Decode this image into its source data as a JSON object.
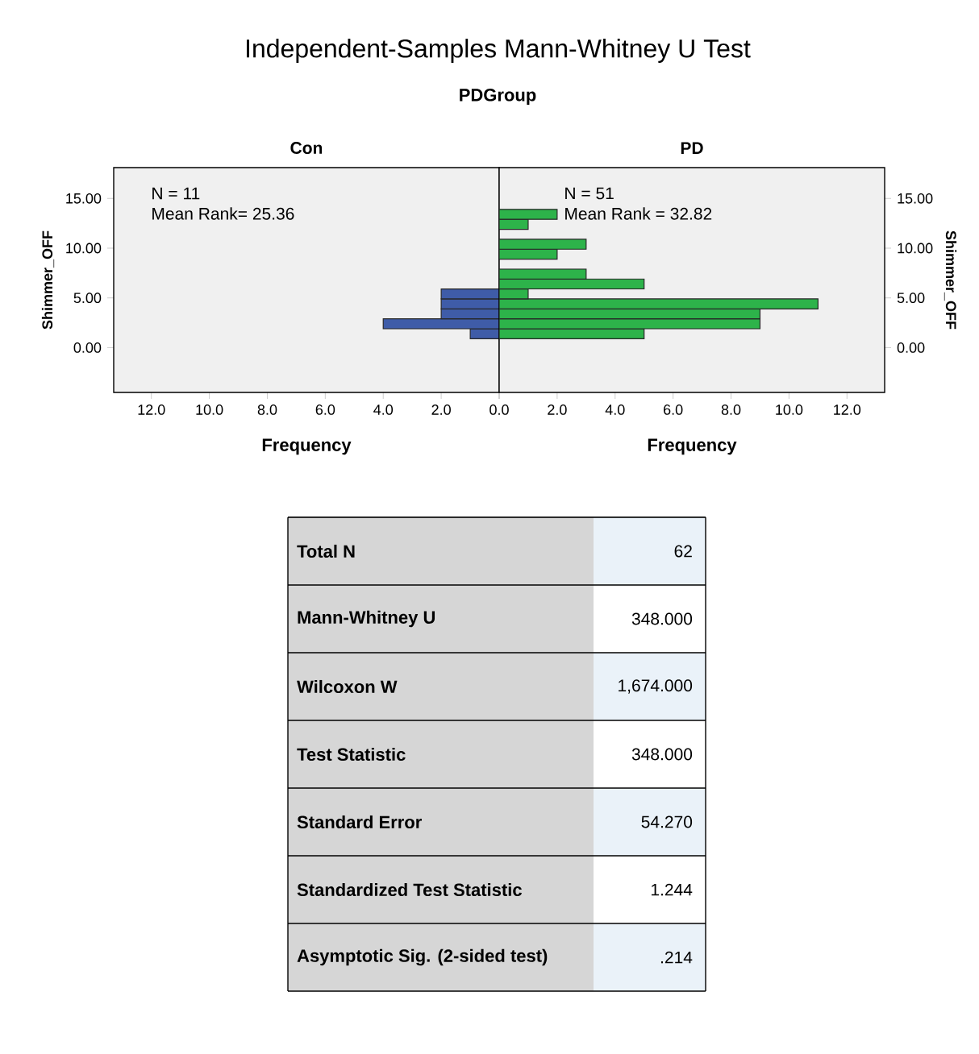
{
  "chart_data": [
    {
      "type": "other",
      "title": "Independent-Samples Mann-Whitney U Test",
      "subtitle": "PDGroup"
    },
    {
      "type": "histogram",
      "orientation": "horizontal",
      "title": "Con",
      "xlabel": "Frequency",
      "ylabel": "Shimmer_OFF",
      "color": "#3f5ca8",
      "bins": [
        0.9,
        1.9,
        2.9,
        3.9,
        4.9,
        5.9
      ],
      "values": [
        1,
        4,
        2,
        2,
        2
      ],
      "xlim": [
        13.3,
        0
      ],
      "ylim": [
        -4.5,
        18.1
      ],
      "xticks": [
        {
          "value": 12,
          "label": "12.0"
        },
        {
          "value": 10,
          "label": "10.0"
        },
        {
          "value": 8,
          "label": "8.0"
        },
        {
          "value": 6,
          "label": "6.0"
        },
        {
          "value": 4,
          "label": "4.0"
        },
        {
          "value": 2,
          "label": "2.0"
        },
        {
          "value": 0,
          "label": null
        }
      ],
      "yticks": [
        {
          "value": 0,
          "label": "0.00"
        },
        {
          "value": 5,
          "label": "5.00"
        },
        {
          "value": 10,
          "label": "10.00"
        },
        {
          "value": 15,
          "label": "15.00"
        }
      ],
      "annotations": [
        "N = 11",
        "Mean Rank= 25.36"
      ]
    },
    {
      "type": "histogram",
      "orientation": "horizontal",
      "title": "PD",
      "xlabel": "Frequency",
      "ylabel": "Shimmer_OFF",
      "color": "#2db34a",
      "bins": [
        0.9,
        1.9,
        2.9,
        3.9,
        4.9,
        5.9,
        6.9,
        7.9,
        8.9,
        9.9,
        10.9,
        11.9,
        12.9,
        13.9
      ],
      "values": [
        5,
        9,
        9,
        11,
        1,
        5,
        3,
        0,
        2,
        3,
        0,
        1,
        2
      ],
      "xlim": [
        0,
        13.3
      ],
      "ylim": [
        -4.5,
        18.1
      ],
      "xticks": [
        {
          "value": 0,
          "label": "0.0"
        },
        {
          "value": 2,
          "label": "2.0"
        },
        {
          "value": 4,
          "label": "4.0"
        },
        {
          "value": 6,
          "label": "6.0"
        },
        {
          "value": 8,
          "label": "8.0"
        },
        {
          "value": 10,
          "label": "10.0"
        },
        {
          "value": 12,
          "label": "12.0"
        }
      ],
      "yticks": [
        {
          "value": 0,
          "label": "0.00"
        },
        {
          "value": 5,
          "label": "5.00"
        },
        {
          "value": 10,
          "label": "10.00"
        },
        {
          "value": 15,
          "label": "15.00"
        }
      ],
      "annotations": [
        "N = 51",
        "Mean Rank = 32.82"
      ]
    },
    {
      "type": "other",
      "categories": [
        "Total N",
        "Mann-Whitney U",
        "Wilcoxon W",
        "Test Statistic",
        "Standard Error",
        "Standardized Test Statistic",
        "Asymptotic Sig. (2-sided test)"
      ],
      "annotations": [
        "62",
        "348.000",
        "1,674.000",
        "348.000",
        "54.270",
        "1.244",
        ".214"
      ]
    }
  ]
}
